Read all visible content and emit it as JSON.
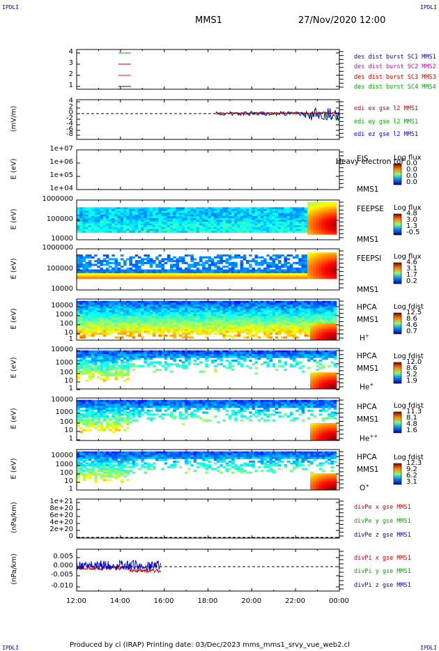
{
  "header": {
    "corner_left_top": "IPDLI",
    "corner_right_top": "IPDLI",
    "corner_left_bottom": "IPDLI",
    "corner_right_bottom": "IPDLI",
    "mission": "MMS1",
    "datetime": "27/Nov/2020 12:00"
  },
  "footer": {
    "text": "Produced by cl (IRAP)   Printing date: 03/Dec/2023   mms_mms1_srvy_vue_web2.cl"
  },
  "colors": {
    "blue": "#0000cc",
    "red": "#cc0000",
    "green": "#00aa00",
    "magenta": "#cc00cc"
  },
  "chart_data": [
    {
      "type": "line",
      "id": "des_dist",
      "ylabel": "",
      "yticks": [
        "4",
        "3",
        "2",
        "1"
      ],
      "legend": [
        {
          "text": "des dist burst SC1 MMS1",
          "color": "#0000cc"
        },
        {
          "text": "des dist burst SC2 MMS2",
          "color": "#cc00cc"
        },
        {
          "text": "des dist burst SC3 MMS3",
          "color": "#cc0000"
        },
        {
          "text": "des dist burst SC4 MMS4",
          "color": "#00aa00"
        }
      ]
    },
    {
      "type": "line",
      "id": "edi_e",
      "ylabel": "(mV/m)",
      "yticks": [
        "4",
        "2",
        "0",
        "-2",
        "-4",
        "-6",
        "-8"
      ],
      "legend": [
        {
          "text": "edi ex gse l2 MMS1",
          "color": "#cc0000"
        },
        {
          "text": "edi ey gse l2 MMS1",
          "color": "#00aa00"
        },
        {
          "text": "edi ez gse l2 MMS1",
          "color": "#0000cc"
        }
      ]
    },
    {
      "type": "heatmap",
      "id": "eis",
      "ylabel": "E (eV)",
      "yticks": [
        "1e+07",
        "1e+06",
        "1e+05",
        "1e+04"
      ],
      "instrument": [
        "EIS",
        "MMS1"
      ],
      "overlay_text": "Heavy electron tof",
      "cbar_title": "Log flux",
      "cbar_values": [
        "0.0",
        "0.0",
        "0.0",
        "0.0"
      ]
    },
    {
      "type": "heatmap",
      "id": "feeps_e",
      "ylabel": "E (eV)",
      "yticks": [
        "1000000",
        "100000",
        "10000"
      ],
      "instrument": [
        "FEEPSE",
        "MMS1"
      ],
      "cbar_title": "Log flux",
      "cbar_values": [
        "4.8",
        "3.0",
        "1.3",
        "-0.5"
      ]
    },
    {
      "type": "heatmap",
      "id": "feeps_i",
      "ylabel": "E (eV)",
      "yticks": [
        "1000000",
        "100000",
        "10000"
      ],
      "instrument": [
        "FEEPSI",
        "MMS1"
      ],
      "cbar_title": "Log flux",
      "cbar_values": [
        "4.6",
        "3.1",
        "1.7",
        "0.2"
      ]
    },
    {
      "type": "heatmap",
      "id": "hpca_h",
      "ylabel": "E (eV)",
      "yticks": [
        "10000",
        "1000",
        "100",
        "10",
        "1"
      ],
      "instrument": [
        "HPCA",
        "MMS1"
      ],
      "species": "H",
      "species_sup": "+",
      "cbar_title": "Log fdist",
      "cbar_values": [
        "12.5",
        "8.6",
        "4.6",
        "0.7"
      ]
    },
    {
      "type": "heatmap",
      "id": "hpca_he",
      "ylabel": "E (eV)",
      "yticks": [
        "10000",
        "1000",
        "100",
        "10",
        "1"
      ],
      "instrument": [
        "HPCA",
        "MMS1"
      ],
      "species": "He",
      "species_sup": "+",
      "cbar_title": "Log fdist",
      "cbar_values": [
        "12.0",
        "8.6",
        "5.2",
        "1.9"
      ]
    },
    {
      "type": "heatmap",
      "id": "hpca_hepp",
      "ylabel": "E (eV)",
      "yticks": [
        "10000",
        "1000",
        "100",
        "10",
        "1"
      ],
      "instrument": [
        "HPCA",
        "MMS1"
      ],
      "species": "He",
      "species_sup": "++",
      "cbar_title": "Log fdist",
      "cbar_values": [
        "11.3",
        "8.1",
        "4.8",
        "1.6"
      ]
    },
    {
      "type": "heatmap",
      "id": "hpca_o",
      "ylabel": "E (eV)",
      "yticks": [
        "10000",
        "1000",
        "100",
        "10",
        "1"
      ],
      "instrument": [
        "HPCA",
        "MMS1"
      ],
      "species": "O",
      "species_sup": "+",
      "cbar_title": "Log fdist",
      "cbar_values": [
        "12.3",
        "9.2",
        "6.2",
        "3.1"
      ]
    },
    {
      "type": "line",
      "id": "divpe",
      "ylabel": "(nPa/km)",
      "yticks": [
        "1e+21",
        "8e+20",
        "6e+20",
        "4e+20",
        "2e+20",
        "0"
      ],
      "legend": [
        {
          "text": "divPe x gse MMS1",
          "color": "#cc0000"
        },
        {
          "text": "divPe y gse MMS1",
          "color": "#00aa00"
        },
        {
          "text": "divPe z gse MMS1",
          "color": "#0000cc"
        }
      ]
    },
    {
      "type": "line",
      "id": "divpi",
      "ylabel": "(nPa/km)",
      "yticks": [
        "0.005",
        "0.000",
        "-0.005",
        "-0.010"
      ],
      "legend": [
        {
          "text": "divPi x gse MMS1",
          "color": "#cc0000"
        },
        {
          "text": "divPi y gse MMS1",
          "color": "#00aa00"
        },
        {
          "text": "divPi z gse MMS1",
          "color": "#0000cc"
        }
      ]
    }
  ],
  "xaxis": {
    "ticks": [
      "12:00",
      "14:00",
      "16:00",
      "18:00",
      "20:00",
      "22:00",
      "00:00"
    ]
  }
}
